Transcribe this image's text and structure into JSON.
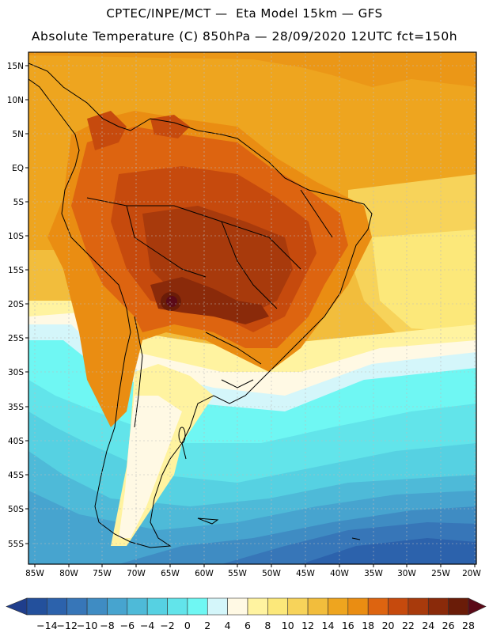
{
  "header": {
    "title_line1": "CPTEC/INPE/MCT —  Eta Model 15km — GFS",
    "title_line2": "Absolute Temperature (C) 850hPa — 28/09/2020 12UTC fct=150h"
  },
  "map": {
    "lat_labels": [
      "15N",
      "10N",
      "5N",
      "EQ",
      "5S",
      "10S",
      "15S",
      "20S",
      "25S",
      "30S",
      "35S",
      "40S",
      "45S",
      "50S",
      "55S"
    ],
    "lon_labels": [
      "85W",
      "80W",
      "75W",
      "70W",
      "65W",
      "60W",
      "55W",
      "50W",
      "45W",
      "40W",
      "35W",
      "30W",
      "25W",
      "20W"
    ]
  },
  "colorbar": {
    "labels": [
      "-14",
      "-12",
      "-10",
      "-8",
      "-6",
      "-4",
      "-2",
      "0",
      "2",
      "4",
      "6",
      "8",
      "10",
      "12",
      "14",
      "16",
      "18",
      "20",
      "22",
      "24",
      "26",
      "28"
    ],
    "colors": [
      "#1f3e8c",
      "#23509c",
      "#2c62ac",
      "#3776b8",
      "#3f8cc3",
      "#47a4cf",
      "#4ebad8",
      "#56d1e2",
      "#62e4ea",
      "#6ff7f3",
      "#d4f6fa",
      "#fff9e4",
      "#fff3a0",
      "#fce87a",
      "#f7d35a",
      "#f2bd3c",
      "#eea51f",
      "#ea8d12",
      "#dd6410",
      "#c64a0d",
      "#a83a0c",
      "#8a2a0a",
      "#6a1c08",
      "#5b0a18"
    ]
  }
}
